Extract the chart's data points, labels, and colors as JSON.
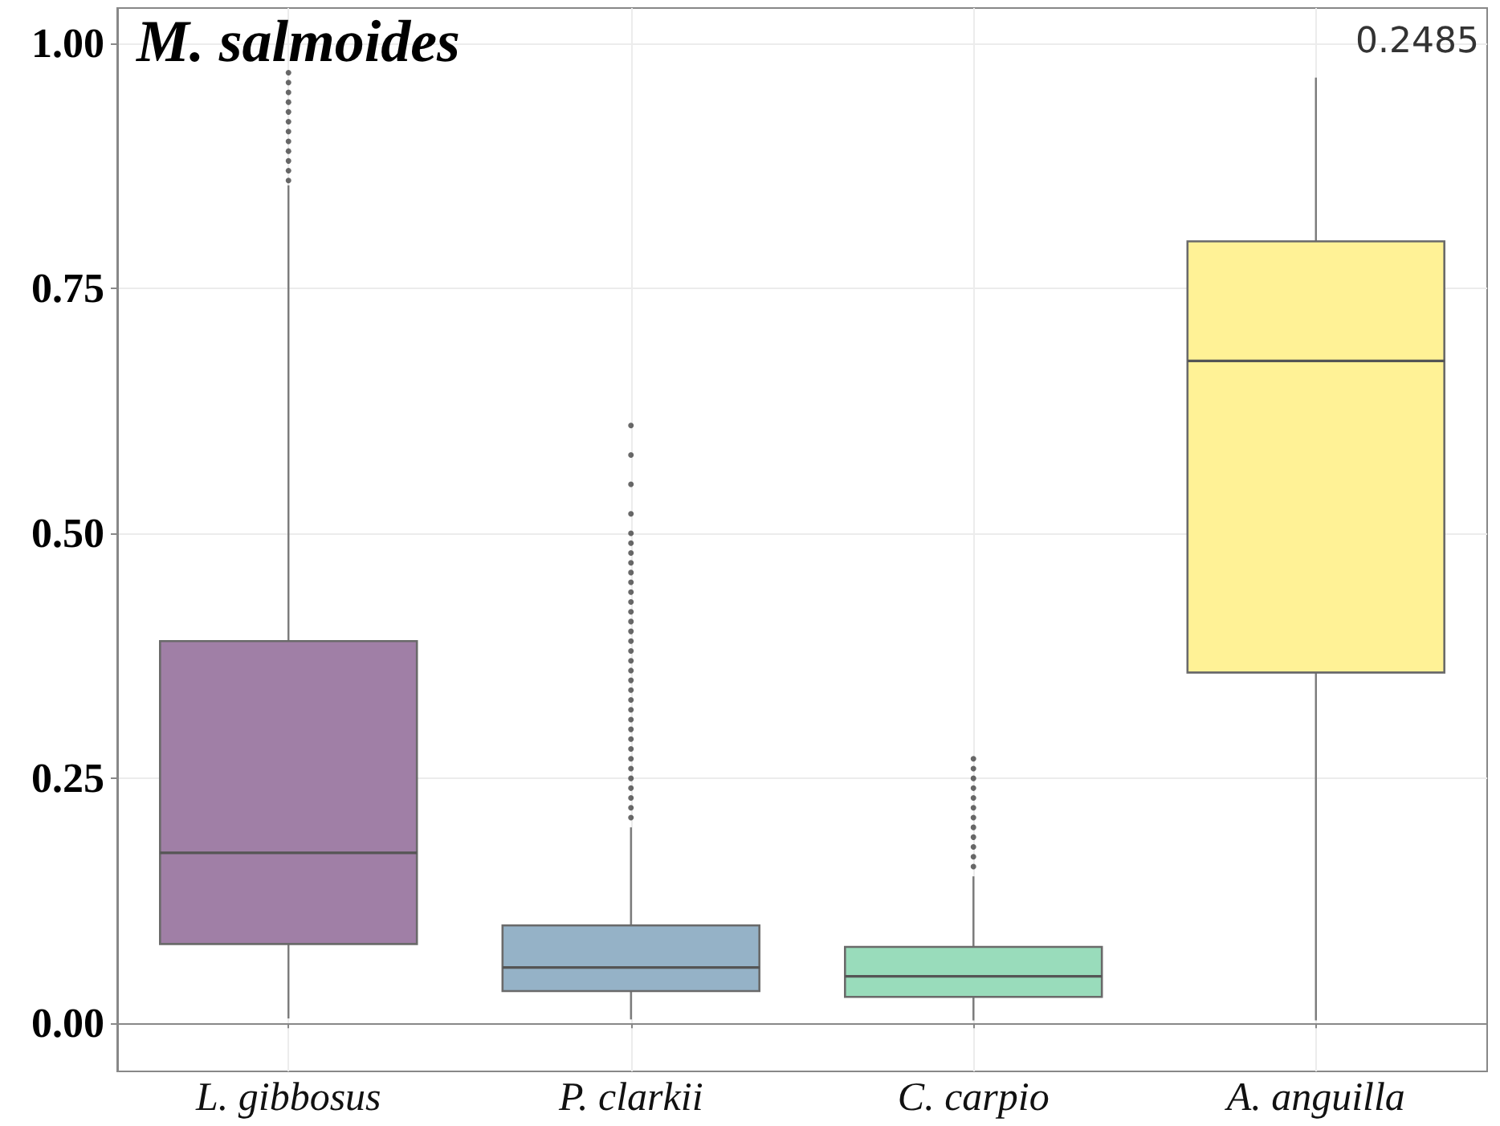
{
  "chart_data": {
    "type": "box",
    "title": "M. salmoides",
    "annotations": [
      "0.2485"
    ],
    "categories": [
      "L. gibbosus",
      "P. clarkii",
      "C. carpio",
      "A. anguilla"
    ],
    "colors": [
      "#a07fa6",
      "#95b2c7",
      "#99dcbb",
      "#fff296"
    ],
    "boxes": [
      {
        "low": 0.005,
        "q1": 0.081,
        "median": 0.174,
        "q3": 0.39,
        "high": 0.855,
        "outliers": [
          0.86,
          0.87,
          0.88,
          0.89,
          0.9,
          0.91,
          0.92,
          0.93,
          0.94,
          0.95,
          0.96,
          0.97
        ]
      },
      {
        "low": 0.004,
        "q1": 0.033,
        "median": 0.057,
        "q3": 0.1,
        "high": 0.2,
        "outliers": [
          0.21,
          0.22,
          0.23,
          0.24,
          0.25,
          0.26,
          0.27,
          0.28,
          0.29,
          0.3,
          0.31,
          0.32,
          0.33,
          0.34,
          0.35,
          0.36,
          0.37,
          0.38,
          0.39,
          0.4,
          0.41,
          0.42,
          0.43,
          0.44,
          0.45,
          0.46,
          0.47,
          0.48,
          0.49,
          0.5,
          0.52,
          0.55,
          0.58,
          0.61
        ]
      },
      {
        "low": 0.003,
        "q1": 0.027,
        "median": 0.048,
        "q3": 0.078,
        "high": 0.15,
        "outliers": [
          0.16,
          0.17,
          0.18,
          0.19,
          0.2,
          0.21,
          0.22,
          0.23,
          0.24,
          0.25,
          0.26,
          0.27
        ]
      },
      {
        "low": 0.003,
        "q1": 0.358,
        "median": 0.676,
        "q3": 0.798,
        "high": 0.965
      }
    ],
    "ylim": [
      -0.049,
      1.036
    ],
    "yticks": [
      {
        "value": 0,
        "label": "0.00"
      },
      {
        "value": 0.25,
        "label": "0.25"
      },
      {
        "value": 0.5,
        "label": "0.50"
      },
      {
        "value": 0.75,
        "label": "0.75"
      },
      {
        "value": 1,
        "label": "1.00"
      }
    ],
    "grid": true
  }
}
